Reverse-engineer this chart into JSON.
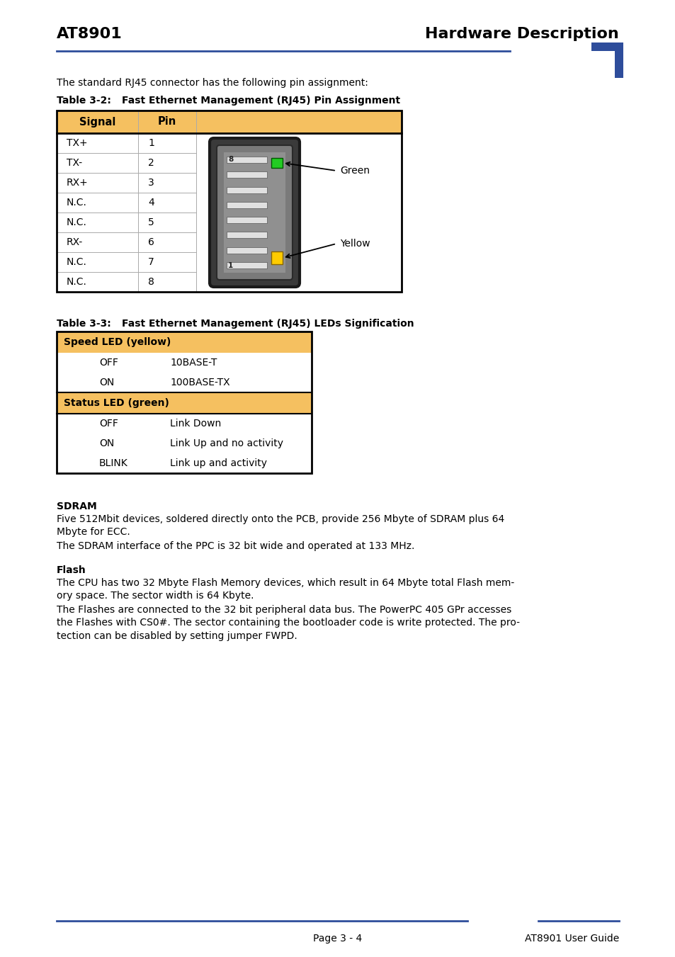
{
  "page_bg": "#ffffff",
  "header_left": "AT8901",
  "header_right": "Hardware Description",
  "header_line_color": "#2e4d9b",
  "corner_block_color": "#2e4d9b",
  "intro_text": "The standard RJ45 connector has the following pin assignment:",
  "table1_header": [
    "Signal",
    "Pin"
  ],
  "table1_header_bg": "#f5c060",
  "table1_rows": [
    [
      "TX+",
      "1"
    ],
    [
      "TX-",
      "2"
    ],
    [
      "RX+",
      "3"
    ],
    [
      "N.C.",
      "4"
    ],
    [
      "N.C.",
      "5"
    ],
    [
      "RX-",
      "6"
    ],
    [
      "N.C.",
      "7"
    ],
    [
      "N.C.",
      "8"
    ]
  ],
  "table2_header1": "Speed LED (yellow)",
  "table2_header2": "Status LED (green)",
  "table2_header_bg": "#f5c060",
  "table2_rows1": [
    [
      "OFF",
      "10BASE-T"
    ],
    [
      "ON",
      "100BASE-TX"
    ]
  ],
  "table2_rows2": [
    [
      "OFF",
      "Link Down"
    ],
    [
      "ON",
      "Link Up and no activity"
    ],
    [
      "BLINK",
      "Link up and activity"
    ]
  ],
  "sdram_title": "SDRAM",
  "sdram_text1": "Five 512Mbit devices, soldered directly onto the PCB, provide 256 Mbyte of SDRAM plus 64\nMbyte for ECC.",
  "sdram_text2": "The SDRAM interface of the PPC is 32 bit wide and operated at 133 MHz.",
  "flash_title": "Flash",
  "flash_text1": "The CPU has two 32 Mbyte Flash Memory devices, which result in 64 Mbyte total Flash mem-\nory space. The sector width is 64 Kbyte.",
  "flash_text2": "The Flashes are connected to the 32 bit peripheral data bus. The PowerPC 405 GPr accesses\nthe Flashes with CS0#. The sector containing the bootloader code is write protected. The pro-\ntection can be disabled by setting jumper FWPD.",
  "footer_line_color": "#2e4d9b",
  "footer_center": "Page 3 - 4",
  "footer_right": "AT8901 User Guide"
}
